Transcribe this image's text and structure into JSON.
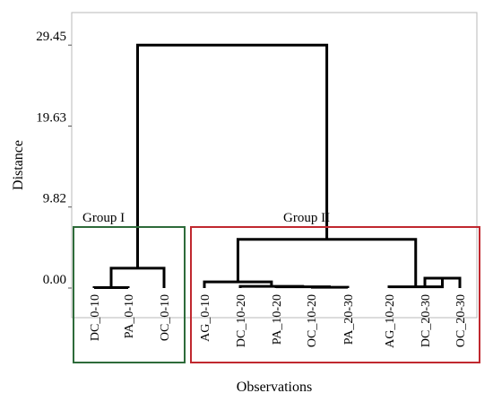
{
  "chart_data": {
    "type": "dendrogram",
    "title": "",
    "xlabel": "Observations",
    "ylabel": "Distance",
    "ylim": [
      0,
      33.5
    ],
    "y_ticks": [
      {
        "label": "0.00",
        "value": 0.0
      },
      {
        "label": "9.82",
        "value": 9.82
      },
      {
        "label": "19.63",
        "value": 19.63
      },
      {
        "label": "29.45",
        "value": 29.45
      }
    ],
    "leaves": [
      "DC_0-10",
      "PA_0-10",
      "OC_0-10",
      "AG_0-10",
      "DC_10-20",
      "PA_10-20",
      "OC_10-20",
      "PA_20-30",
      "AG_10-20",
      "DC_20-30",
      "OC_20-30"
    ],
    "merges": [
      {
        "id": "m1",
        "left": "leaf:0",
        "right": "leaf:1",
        "height": 0.05
      },
      {
        "id": "m2",
        "left": "m1",
        "right": "leaf:2",
        "height": 2.4
      },
      {
        "id": "m3",
        "left": "leaf:6",
        "right": "leaf:7",
        "height": 0.1
      },
      {
        "id": "m4",
        "left": "leaf:5",
        "right": "m3",
        "height": 0.15
      },
      {
        "id": "m5",
        "left": "leaf:4",
        "right": "m4",
        "height": 0.2
      },
      {
        "id": "m6",
        "left": "leaf:3",
        "right": "m5",
        "height": 0.75
      },
      {
        "id": "m7",
        "left": "leaf:9",
        "right": "leaf:10",
        "height": 1.2
      },
      {
        "id": "m8",
        "left": "leaf:8",
        "right": "m7",
        "height": 0.15
      },
      {
        "id": "m9",
        "left": "m6",
        "right": "m8",
        "height": 5.9
      },
      {
        "id": "m10",
        "left": "m2",
        "right": "m9",
        "height": 29.45
      }
    ],
    "groups": [
      {
        "label": "Group I",
        "first_leaf": 0,
        "last_leaf": 2,
        "color": "#2e6b3a"
      },
      {
        "label": "Group II",
        "first_leaf": 3,
        "last_leaf": 10,
        "color": "#c0282f"
      }
    ],
    "line_color": "#000000",
    "frame_color": "#b8b8b8",
    "grid": false,
    "legend": "none"
  }
}
